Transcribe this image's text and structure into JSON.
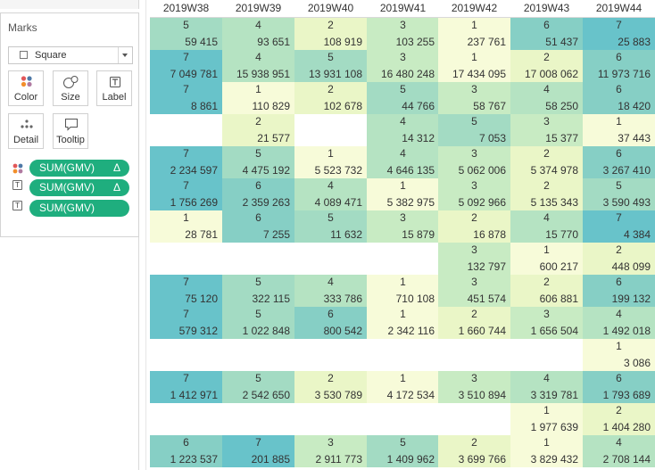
{
  "marks_card": {
    "title": "Marks",
    "mark_type": "Square",
    "buttons": [
      {
        "id": "color",
        "label": "Color",
        "icon": "color-dots-icon"
      },
      {
        "id": "size",
        "label": "Size",
        "icon": "size-icon"
      },
      {
        "id": "label",
        "label": "Label",
        "icon": "label-icon"
      },
      {
        "id": "detail",
        "label": "Detail",
        "icon": "detail-dots-icon"
      },
      {
        "id": "tooltip",
        "label": "Tooltip",
        "icon": "tooltip-icon"
      }
    ],
    "pills": [
      {
        "icon": "color-dots-icon",
        "label": "SUM(GMV)",
        "delta": "Δ"
      },
      {
        "icon": "text-icon",
        "label": "SUM(GMV)",
        "delta": "Δ"
      },
      {
        "icon": "text-icon",
        "label": "SUM(GMV)",
        "delta": ""
      }
    ]
  },
  "columns": [
    "2019W38",
    "2019W39",
    "2019W40",
    "2019W41",
    "2019W42",
    "2019W43",
    "2019W44"
  ],
  "color_scale": {
    "1": "#f7fbd9",
    "2": "#eaf6c7",
    "3": "#c8ebc3",
    "4": "#b5e3c2",
    "5": "#a3dbc3",
    "6": "#86cfc5",
    "7": "#68c3ca"
  },
  "rows": [
    [
      {
        "r": 5,
        "v": "59 415"
      },
      {
        "r": 4,
        "v": "93 651"
      },
      {
        "r": 2,
        "v": "108 919"
      },
      {
        "r": 3,
        "v": "103 255"
      },
      {
        "r": 1,
        "v": "237 761"
      },
      {
        "r": 6,
        "v": "51 437"
      },
      {
        "r": 7,
        "v": "25 883"
      }
    ],
    [
      {
        "r": 7,
        "v": "7 049 781"
      },
      {
        "r": 4,
        "v": "15 938 951"
      },
      {
        "r": 5,
        "v": "13 931 108"
      },
      {
        "r": 3,
        "v": "16 480 248"
      },
      {
        "r": 1,
        "v": "17 434 095"
      },
      {
        "r": 2,
        "v": "17 008 062"
      },
      {
        "r": 6,
        "v": "11 973 716"
      }
    ],
    [
      {
        "r": 7,
        "v": "8 861"
      },
      {
        "r": 1,
        "v": "110 829"
      },
      {
        "r": 2,
        "v": "102 678"
      },
      {
        "r": 5,
        "v": "44 766"
      },
      {
        "r": 3,
        "v": "58 767"
      },
      {
        "r": 4,
        "v": "58 250"
      },
      {
        "r": 6,
        "v": "18 420"
      }
    ],
    [
      null,
      {
        "r": 2,
        "v": "21 577"
      },
      null,
      {
        "r": 4,
        "v": "14 312"
      },
      {
        "r": 5,
        "v": "7 053"
      },
      {
        "r": 3,
        "v": "15 377"
      },
      {
        "r": 1,
        "v": "37 443"
      }
    ],
    [
      {
        "r": 7,
        "v": "2 234 597"
      },
      {
        "r": 5,
        "v": "4 475 192"
      },
      {
        "r": 1,
        "v": "5 523 732"
      },
      {
        "r": 4,
        "v": "4 646 135"
      },
      {
        "r": 3,
        "v": "5 062 006"
      },
      {
        "r": 2,
        "v": "5 374 978"
      },
      {
        "r": 6,
        "v": "3 267 410"
      }
    ],
    [
      {
        "r": 7,
        "v": "1 756 269"
      },
      {
        "r": 6,
        "v": "2 359 263"
      },
      {
        "r": 4,
        "v": "4 089 471"
      },
      {
        "r": 1,
        "v": "5 382 975"
      },
      {
        "r": 3,
        "v": "5 092 966"
      },
      {
        "r": 2,
        "v": "5 135 343"
      },
      {
        "r": 5,
        "v": "3 590 493"
      }
    ],
    [
      {
        "r": 1,
        "v": "28 781"
      },
      {
        "r": 6,
        "v": "7 255"
      },
      {
        "r": 5,
        "v": "11 632"
      },
      {
        "r": 3,
        "v": "15 879"
      },
      {
        "r": 2,
        "v": "16 878"
      },
      {
        "r": 4,
        "v": "15 770"
      },
      {
        "r": 7,
        "v": "4 384"
      }
    ],
    [
      null,
      null,
      null,
      null,
      {
        "r": 3,
        "v": "132 797"
      },
      {
        "r": 1,
        "v": "600 217"
      },
      {
        "r": 2,
        "v": "448 099"
      }
    ],
    [
      {
        "r": 7,
        "v": "75 120"
      },
      {
        "r": 5,
        "v": "322 115"
      },
      {
        "r": 4,
        "v": "333 786"
      },
      {
        "r": 1,
        "v": "710 108"
      },
      {
        "r": 3,
        "v": "451 574"
      },
      {
        "r": 2,
        "v": "606 881"
      },
      {
        "r": 6,
        "v": "199 132"
      }
    ],
    [
      {
        "r": 7,
        "v": "579 312"
      },
      {
        "r": 5,
        "v": "1 022 848"
      },
      {
        "r": 6,
        "v": "800 542"
      },
      {
        "r": 1,
        "v": "2 342 116"
      },
      {
        "r": 2,
        "v": "1 660 744"
      },
      {
        "r": 3,
        "v": "1 656 504"
      },
      {
        "r": 4,
        "v": "1 492 018"
      }
    ],
    [
      null,
      null,
      null,
      null,
      null,
      null,
      {
        "r": 1,
        "v": "3 086"
      }
    ],
    [
      {
        "r": 7,
        "v": "1 412 971"
      },
      {
        "r": 5,
        "v": "2 542 650"
      },
      {
        "r": 2,
        "v": "3 530 789"
      },
      {
        "r": 1,
        "v": "4 172 534"
      },
      {
        "r": 3,
        "v": "3 510 894"
      },
      {
        "r": 4,
        "v": "3 319 781"
      },
      {
        "r": 6,
        "v": "1 793 689"
      }
    ],
    [
      null,
      null,
      null,
      null,
      null,
      {
        "r": 1,
        "v": "1 977 639"
      },
      {
        "r": 2,
        "v": "1 404 280"
      }
    ],
    [
      {
        "r": 6,
        "v": "1 223 537"
      },
      {
        "r": 7,
        "v": "201 885"
      },
      {
        "r": 3,
        "v": "2 911 773"
      },
      {
        "r": 5,
        "v": "1 409 962"
      },
      {
        "r": 2,
        "v": "3 699 766"
      },
      {
        "r": 1,
        "v": "3 829 432"
      },
      {
        "r": 4,
        "v": "2 708 144"
      }
    ]
  ]
}
